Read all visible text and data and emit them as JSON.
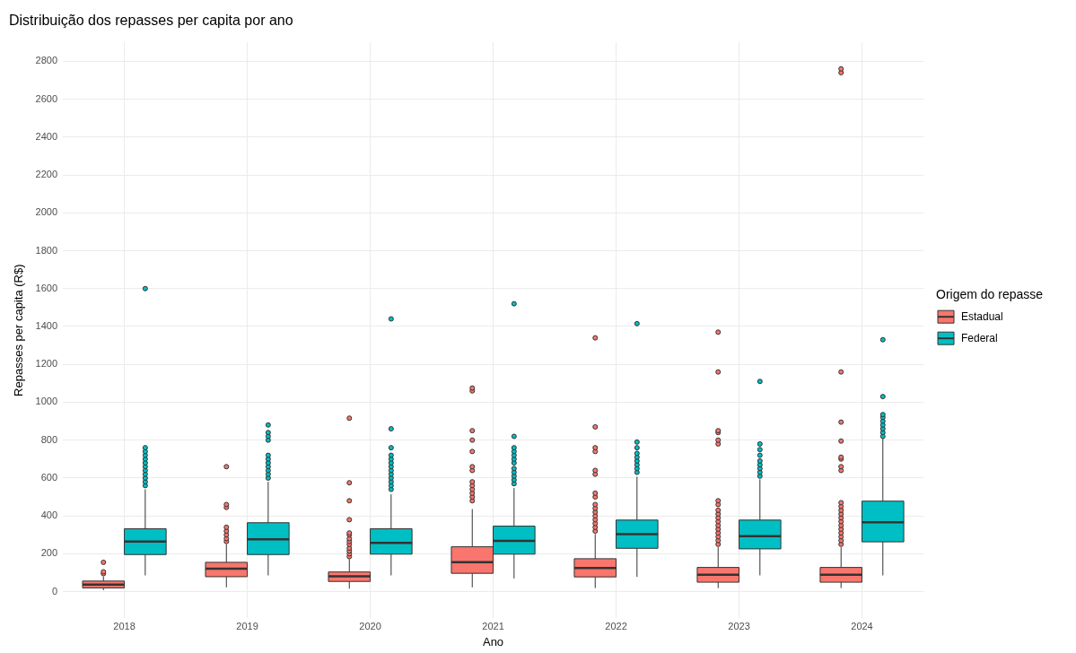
{
  "chart_data": {
    "type": "box",
    "title": "Distribuição dos repasses per capita por ano",
    "xlabel": "Ano",
    "ylabel": "Repasses per capita (R$)",
    "legend_title": "Origem do repasse",
    "legend": "right",
    "grid": true,
    "categories": [
      "2018",
      "2019",
      "2020",
      "2021",
      "2022",
      "2023",
      "2024"
    ],
    "ylim": [
      -140,
      2900
    ],
    "yticks": [
      0,
      200,
      400,
      600,
      800,
      1000,
      1200,
      1400,
      1600,
      1800,
      2000,
      2200,
      2400,
      2600,
      2800
    ],
    "series": [
      {
        "name": "Estadual",
        "color": "#f8766d",
        "boxes": [
          {
            "low": 8,
            "q1": 20,
            "median": 37,
            "q3": 56,
            "high": 80,
            "outliers": [
              95,
              105,
              155
            ]
          },
          {
            "low": 23,
            "q1": 79,
            "median": 121,
            "q3": 155,
            "high": 250,
            "outliers": [
              265,
              280,
              300,
              320,
              340,
              445,
              460,
              660
            ]
          },
          {
            "low": 16,
            "q1": 54,
            "median": 81,
            "q3": 104,
            "high": 172,
            "outliers": [
              185,
              200,
              215,
              230,
              250,
              265,
              280,
              300,
              310,
              380,
              480,
              575,
              916
            ]
          },
          {
            "low": 23,
            "q1": 97,
            "median": 156,
            "q3": 237,
            "high": 436,
            "outliers": [
              480,
              500,
              520,
              540,
              560,
              580,
              640,
              660,
              740,
              800,
              850,
              1060,
              1075
            ]
          },
          {
            "low": 19,
            "q1": 78,
            "median": 125,
            "q3": 174,
            "high": 304,
            "outliers": [
              320,
              340,
              360,
              380,
              400,
              420,
              440,
              460,
              500,
              520,
              620,
              640,
              740,
              760,
              870,
              1340
            ]
          },
          {
            "low": 19,
            "q1": 50,
            "median": 89,
            "q3": 128,
            "high": 234,
            "outliers": [
              250,
              270,
              290,
              310,
              330,
              350,
              370,
              390,
              410,
              430,
              460,
              480,
              780,
              800,
              840,
              850,
              1160,
              1370
            ]
          },
          {
            "low": 19,
            "q1": 50,
            "median": 89,
            "q3": 128,
            "high": 234,
            "outliers": [
              250,
              270,
              290,
              310,
              330,
              350,
              370,
              390,
              410,
              430,
              450,
              470,
              640,
              660,
              700,
              710,
              795,
              895,
              1160,
              2740,
              2760
            ]
          }
        ]
      },
      {
        "name": "Federal",
        "color": "#00bfc4",
        "boxes": [
          {
            "low": 86,
            "q1": 196,
            "median": 265,
            "q3": 332,
            "high": 540,
            "outliers": [
              560,
              580,
              600,
              620,
              640,
              660,
              680,
              700,
              720,
              740,
              760,
              1600
            ]
          },
          {
            "low": 86,
            "q1": 196,
            "median": 277,
            "q3": 364,
            "high": 580,
            "outliers": [
              600,
              620,
              640,
              660,
              680,
              700,
              720,
              800,
              820,
              840,
              880
            ]
          },
          {
            "low": 86,
            "q1": 198,
            "median": 257,
            "q3": 332,
            "high": 514,
            "outliers": [
              540,
              560,
              580,
              600,
              620,
              640,
              660,
              680,
              700,
              720,
              760,
              860,
              1440
            ]
          },
          {
            "low": 70,
            "q1": 198,
            "median": 268,
            "q3": 346,
            "high": 547,
            "outliers": [
              570,
              590,
              610,
              630,
              650,
              680,
              700,
              720,
              740,
              760,
              820,
              1520
            ]
          },
          {
            "low": 78,
            "q1": 229,
            "median": 304,
            "q3": 378,
            "high": 607,
            "outliers": [
              630,
              650,
              670,
              690,
              710,
              730,
              760,
              790,
              1415
            ]
          },
          {
            "low": 86,
            "q1": 226,
            "median": 293,
            "q3": 378,
            "high": 593,
            "outliers": [
              610,
              630,
              650,
              670,
              690,
              720,
              750,
              780,
              1110
            ]
          },
          {
            "low": 86,
            "q1": 263,
            "median": 366,
            "q3": 478,
            "high": 810,
            "outliers": [
              820,
              840,
              860,
              880,
              900,
              920,
              935,
              1030,
              1330
            ]
          }
        ]
      }
    ]
  }
}
